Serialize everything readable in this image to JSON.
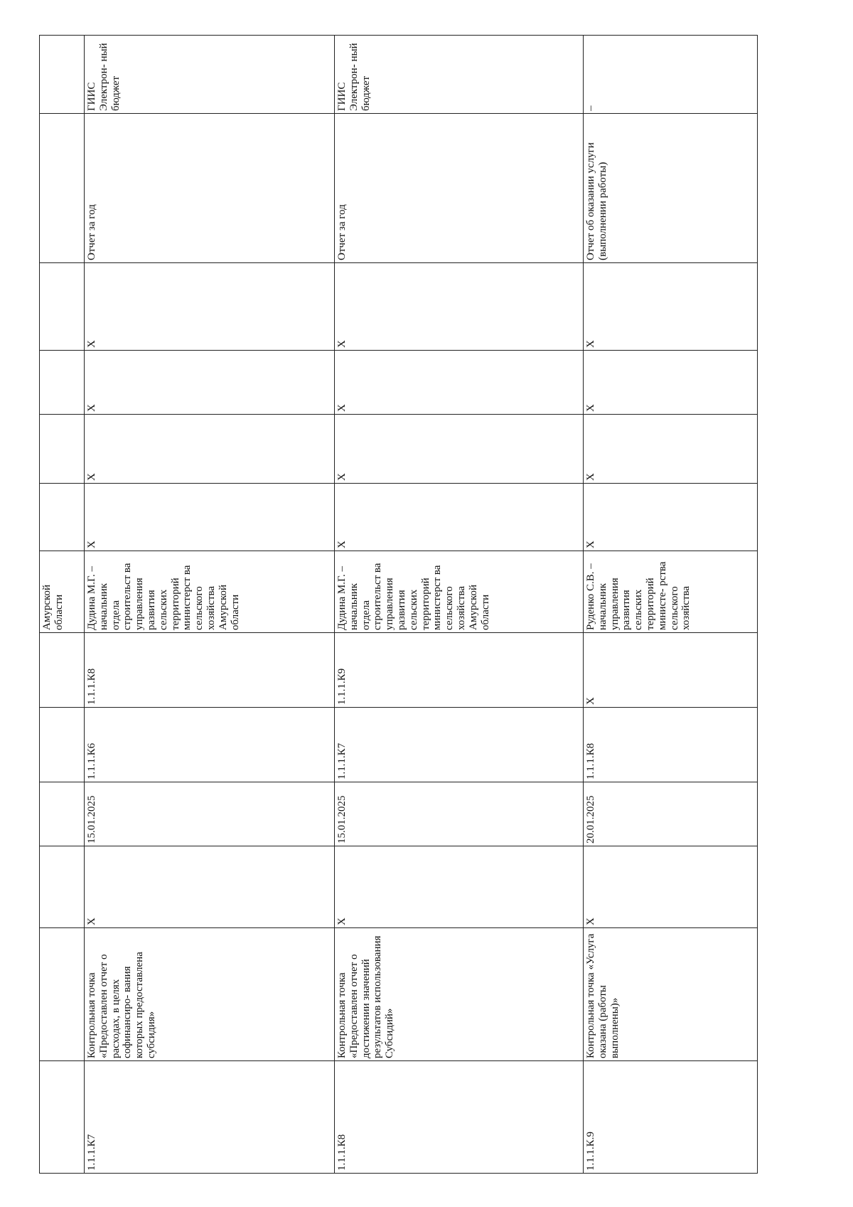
{
  "fragment": {
    "responsible": "Амурской области"
  },
  "rows": [
    {
      "cells": [
        "1.1.1.К7",
        "Контрольная точка «Предоставлен отчет о расходах, в целях софинансиро- вания которых предоставлена субсидия»",
        "X",
        "15.01.2025",
        "1.1.1.К6",
        "1.1.1.К8",
        "Дудина М.Г. – начальник отдела строительст ва управления развития сельских территорий министерст ва сельского хозяйства Амурской области",
        "X",
        "X",
        "X",
        "X",
        "Отчет за год",
        "ГИИС Электрон- ный бюджет"
      ]
    },
    {
      "cells": [
        "1.1.1.К8",
        "Контрольная точка «Предоставлен отчет о достижении значений результатов использования Субсидий»",
        "X",
        "15.01.2025",
        "1.1.1.К7",
        "1.1.1.К9",
        "Дудина М.Г. – начальник отдела строительст ва управления развития сельских территорий министерст ва сельского хозяйства Амурской области",
        "X",
        "X",
        "X",
        "X",
        "Отчет за год",
        "ГИИС Электрон- ный бюджет"
      ]
    },
    {
      "cells": [
        "1.1.1.К.9",
        "Контрольная точка «Услуга оказана (работы выполнены)»",
        "X",
        "20.01.2025",
        "1.1.1.К8",
        "X",
        "Руденко С.В. – начальник управления развития сельских территорий министе- рства сельского хозяйства",
        "X",
        "X",
        "X",
        "X",
        "Отчет об оказании услуги (выполнении работы)",
        "–"
      ]
    }
  ]
}
